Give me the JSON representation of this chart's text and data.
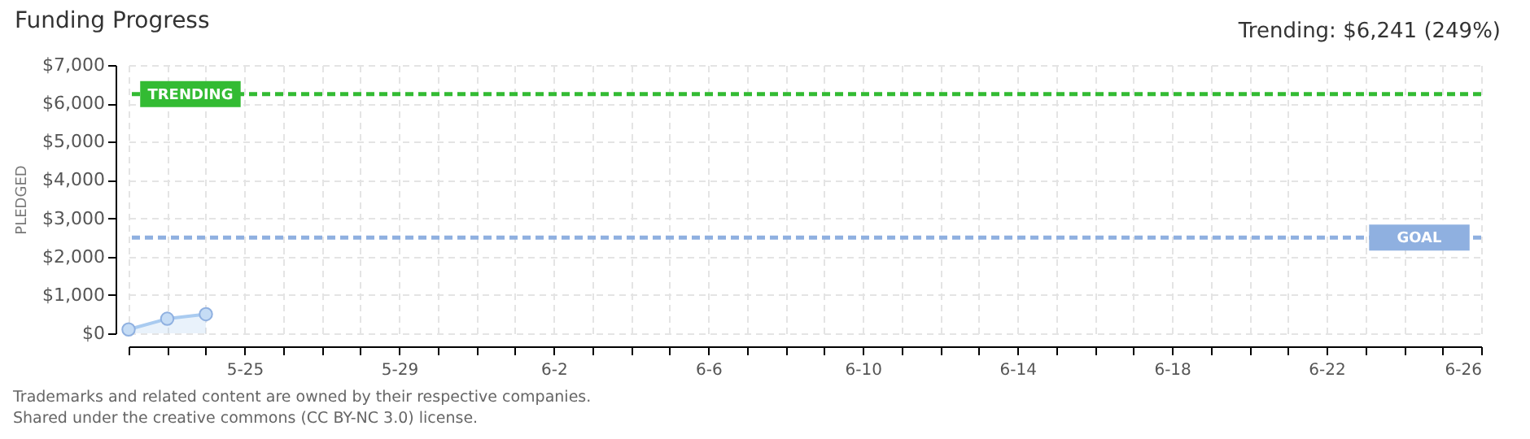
{
  "chart_data": {
    "type": "area",
    "title": "Funding Progress",
    "ylabel": "PLEDGED",
    "annotations": [
      "Trending: $6,241 (249%)",
      "Trademarks and related content are owned by their respective companies.",
      "Shared under the creative commons (CC BY-NC 3.0) license."
    ],
    "x": [
      "--05-22",
      "--05-23",
      "--05-24"
    ],
    "series": [
      {
        "color": "#a9cbf0",
        "values": [
          100,
          380,
          500
        ]
      }
    ],
    "marker": "circle",
    "grid": true,
    "xlim": [
      "--05-22",
      "--06-26"
    ],
    "xticks": [
      {
        "value": "--05-22",
        "label": null
      },
      {
        "value": "--05-23",
        "label": null
      },
      {
        "value": "--05-24",
        "label": null
      },
      {
        "value": "--05-25",
        "label": "5-25"
      },
      {
        "value": "--05-26",
        "label": null
      },
      {
        "value": "--05-27",
        "label": null
      },
      {
        "value": "--05-28",
        "label": null
      },
      {
        "value": "--05-29",
        "label": "5-29"
      },
      {
        "value": "--05-30",
        "label": null
      },
      {
        "value": "--05-31",
        "label": null
      },
      {
        "value": "--06-01",
        "label": null
      },
      {
        "value": "--06-02",
        "label": "6-2"
      },
      {
        "value": "--06-03",
        "label": null
      },
      {
        "value": "--06-04",
        "label": null
      },
      {
        "value": "--06-05",
        "label": null
      },
      {
        "value": "--06-06",
        "label": "6-6"
      },
      {
        "value": "--06-07",
        "label": null
      },
      {
        "value": "--06-08",
        "label": null
      },
      {
        "value": "--06-09",
        "label": null
      },
      {
        "value": "--06-10",
        "label": "6-10"
      },
      {
        "value": "--06-11",
        "label": null
      },
      {
        "value": "--06-12",
        "label": null
      },
      {
        "value": "--06-13",
        "label": null
      },
      {
        "value": "--06-14",
        "label": "6-14"
      },
      {
        "value": "--06-15",
        "label": null
      },
      {
        "value": "--06-16",
        "label": null
      },
      {
        "value": "--06-17",
        "label": null
      },
      {
        "value": "--06-18",
        "label": "6-18"
      },
      {
        "value": "--06-19",
        "label": null
      },
      {
        "value": "--06-20",
        "label": null
      },
      {
        "value": "--06-21",
        "label": null
      },
      {
        "value": "--06-22",
        "label": "6-22"
      },
      {
        "value": "--06-23",
        "label": null
      },
      {
        "value": "--06-24",
        "label": null
      },
      {
        "value": "--06-25",
        "label": null
      },
      {
        "value": "--06-26",
        "label": "6-26"
      }
    ],
    "ylim": [
      0,
      7000
    ],
    "yticks": [
      {
        "value": 0,
        "label": "$0"
      },
      {
        "value": 1000,
        "label": "$1,000"
      },
      {
        "value": 2000,
        "label": "$2,000"
      },
      {
        "value": 3000,
        "label": "$3,000"
      },
      {
        "value": 4000,
        "label": "$4,000"
      },
      {
        "value": 5000,
        "label": "$5,000"
      },
      {
        "value": 6000,
        "label": "$6,000"
      },
      {
        "value": 7000,
        "label": "$7,000"
      }
    ],
    "ref_lines": [
      {
        "axis": "y",
        "value": 6241,
        "label": "TRENDING",
        "color": "#33bb33",
        "line_style": "dashed"
      },
      {
        "axis": "y",
        "value": 2500,
        "label": "GOAL",
        "color": "#8fb0e0",
        "line_style": "dashed"
      }
    ]
  }
}
